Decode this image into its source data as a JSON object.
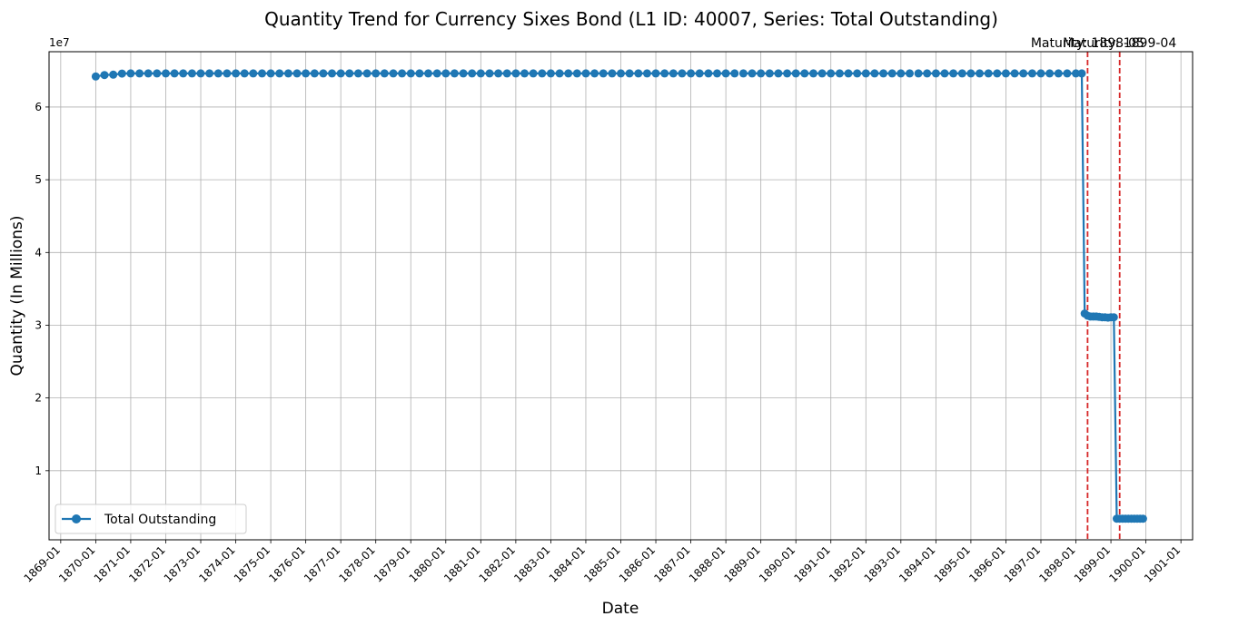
{
  "chart_data": {
    "type": "line",
    "title": "Quantity Trend for Currency Sixes Bond (L1 ID: 40007, Series: Total Outstanding)",
    "xlabel": "Date",
    "ylabel": "Quantity (In Millions)",
    "y_offset_label": "1e7",
    "x_range": [
      "1868-09",
      "1901-05"
    ],
    "ylim": [
      500000,
      67600000
    ],
    "y_ticks": [
      10000000,
      20000000,
      30000000,
      40000000,
      50000000,
      60000000
    ],
    "y_tick_labels": [
      "1",
      "2",
      "3",
      "4",
      "5",
      "6"
    ],
    "x_ticks": [
      "1869-01",
      "1870-01",
      "1871-01",
      "1872-01",
      "1873-01",
      "1874-01",
      "1875-01",
      "1876-01",
      "1877-01",
      "1878-01",
      "1879-01",
      "1880-01",
      "1881-01",
      "1882-01",
      "1883-01",
      "1884-01",
      "1885-01",
      "1886-01",
      "1887-01",
      "1888-01",
      "1889-01",
      "1890-01",
      "1891-01",
      "1892-01",
      "1893-01",
      "1894-01",
      "1895-01",
      "1896-01",
      "1897-01",
      "1898-01",
      "1899-01",
      "1900-01",
      "1901-01"
    ],
    "grid": true,
    "legend_position": "lower-left",
    "series": [
      {
        "name": "Total Outstanding",
        "color": "#1f77b4",
        "marker": "circle",
        "segments": [
          {
            "x": [
              "1870-01",
              "1870-04",
              "1870-07",
              "1870-10",
              "1871-01",
              "1871-04",
              "1871-07",
              "1871-10",
              "1872-01",
              "1872-04",
              "1872-07",
              "1872-10",
              "1873-01",
              "1873-04",
              "1873-07",
              "1873-10",
              "1874-01",
              "1874-04",
              "1874-07",
              "1874-10",
              "1875-01",
              "1875-04",
              "1875-07",
              "1875-10",
              "1876-01",
              "1876-04",
              "1876-07",
              "1876-10",
              "1877-01",
              "1877-04",
              "1877-07",
              "1877-10",
              "1878-01",
              "1878-04",
              "1878-07",
              "1878-10",
              "1879-01",
              "1879-04",
              "1879-07",
              "1879-10",
              "1880-01",
              "1880-04",
              "1880-07",
              "1880-10",
              "1881-01",
              "1881-04",
              "1881-07",
              "1881-10",
              "1882-01",
              "1882-04",
              "1882-07",
              "1882-10",
              "1883-01",
              "1883-04",
              "1883-07",
              "1883-10",
              "1884-01",
              "1884-04",
              "1884-07",
              "1884-10",
              "1885-01",
              "1885-04",
              "1885-07",
              "1885-10",
              "1886-01",
              "1886-04",
              "1886-07",
              "1886-10",
              "1887-01",
              "1887-04",
              "1887-07",
              "1887-10",
              "1888-01",
              "1888-04"
            ],
            "y": [
              64200000,
              64400000,
              64450000,
              64600000,
              64620000,
              64620000,
              64620000,
              64620000,
              64620000,
              64620000,
              64620000,
              64620000,
              64620000,
              64620000,
              64620000,
              64620000,
              64620000,
              64620000,
              64620000,
              64620000,
              64620000,
              64620000,
              64620000,
              64620000,
              64620000,
              64620000,
              64620000,
              64620000,
              64620000,
              64620000,
              64620000,
              64620000,
              64620000,
              64620000,
              64620000,
              64620000,
              64620000,
              64620000,
              64620000,
              64620000,
              64620000,
              64620000,
              64620000,
              64620000,
              64620000,
              64620000,
              64620000,
              64620000,
              64620000,
              64620000,
              64620000,
              64620000,
              64620000,
              64620000,
              64620000,
              64620000,
              64620000,
              64620000,
              64620000,
              64620000,
              64620000,
              64620000,
              64620000,
              64620000,
              64620000,
              64620000,
              64620000,
              64620000,
              64620000,
              64620000,
              64620000,
              64620000,
              64620000,
              64620000
            ]
          },
          {
            "x": [
              "1888-07",
              "1888-10",
              "1889-01",
              "1889-04",
              "1889-07",
              "1889-10",
              "1890-01",
              "1890-04",
              "1890-07",
              "1890-10",
              "1891-01",
              "1891-04",
              "1891-07",
              "1891-10",
              "1892-01",
              "1892-04",
              "1892-07",
              "1892-10",
              "1893-01",
              "1893-04"
            ],
            "y": [
              64620000,
              64620000,
              64620000,
              64620000,
              64620000,
              64620000,
              64620000,
              64620000,
              64620000,
              64620000,
              64620000,
              64620000,
              64620000,
              64620000,
              64620000,
              64620000,
              64620000,
              64620000,
              64620000,
              64620000
            ]
          },
          {
            "x": [
              "1893-07",
              "1893-10",
              "1894-01",
              "1894-04",
              "1894-07",
              "1894-10",
              "1895-01",
              "1895-04",
              "1895-07",
              "1895-10",
              "1896-01",
              "1896-04",
              "1896-07",
              "1896-10",
              "1897-01",
              "1897-04",
              "1897-07",
              "1897-10",
              "1898-01",
              "1898-03",
              "1898-04",
              "1898-05",
              "1898-06",
              "1898-07",
              "1898-08",
              "1898-09",
              "1898-10",
              "1898-11",
              "1898-12",
              "1899-01",
              "1899-02",
              "1899-03",
              "1899-04",
              "1899-05",
              "1899-06",
              "1899-07",
              "1899-08",
              "1899-09",
              "1899-10",
              "1899-11",
              "1899-12"
            ],
            "y": [
              64620000,
              64620000,
              64620000,
              64620000,
              64620000,
              64620000,
              64620000,
              64620000,
              64620000,
              64620000,
              64620000,
              64620000,
              64620000,
              64620000,
              64620000,
              64620000,
              64620000,
              64620000,
              64620000,
              64620000,
              31600000,
              31300000,
              31200000,
              31200000,
              31200000,
              31150000,
              31100000,
              31100000,
              31050000,
              31100000,
              31100000,
              3400000,
              3400000,
              3400000,
              3400000,
              3400000,
              3400000,
              3400000,
              3400000,
              3400000,
              3400000
            ]
          }
        ]
      }
    ],
    "annotations": [
      {
        "type": "vline",
        "x": "1898-05",
        "color": "#d62728",
        "style": "dashed",
        "label": "Maturity: 1898-05"
      },
      {
        "type": "vline",
        "x": "1899-04",
        "color": "#d62728",
        "style": "dashed",
        "label": "Maturity: 1899-04"
      }
    ]
  }
}
